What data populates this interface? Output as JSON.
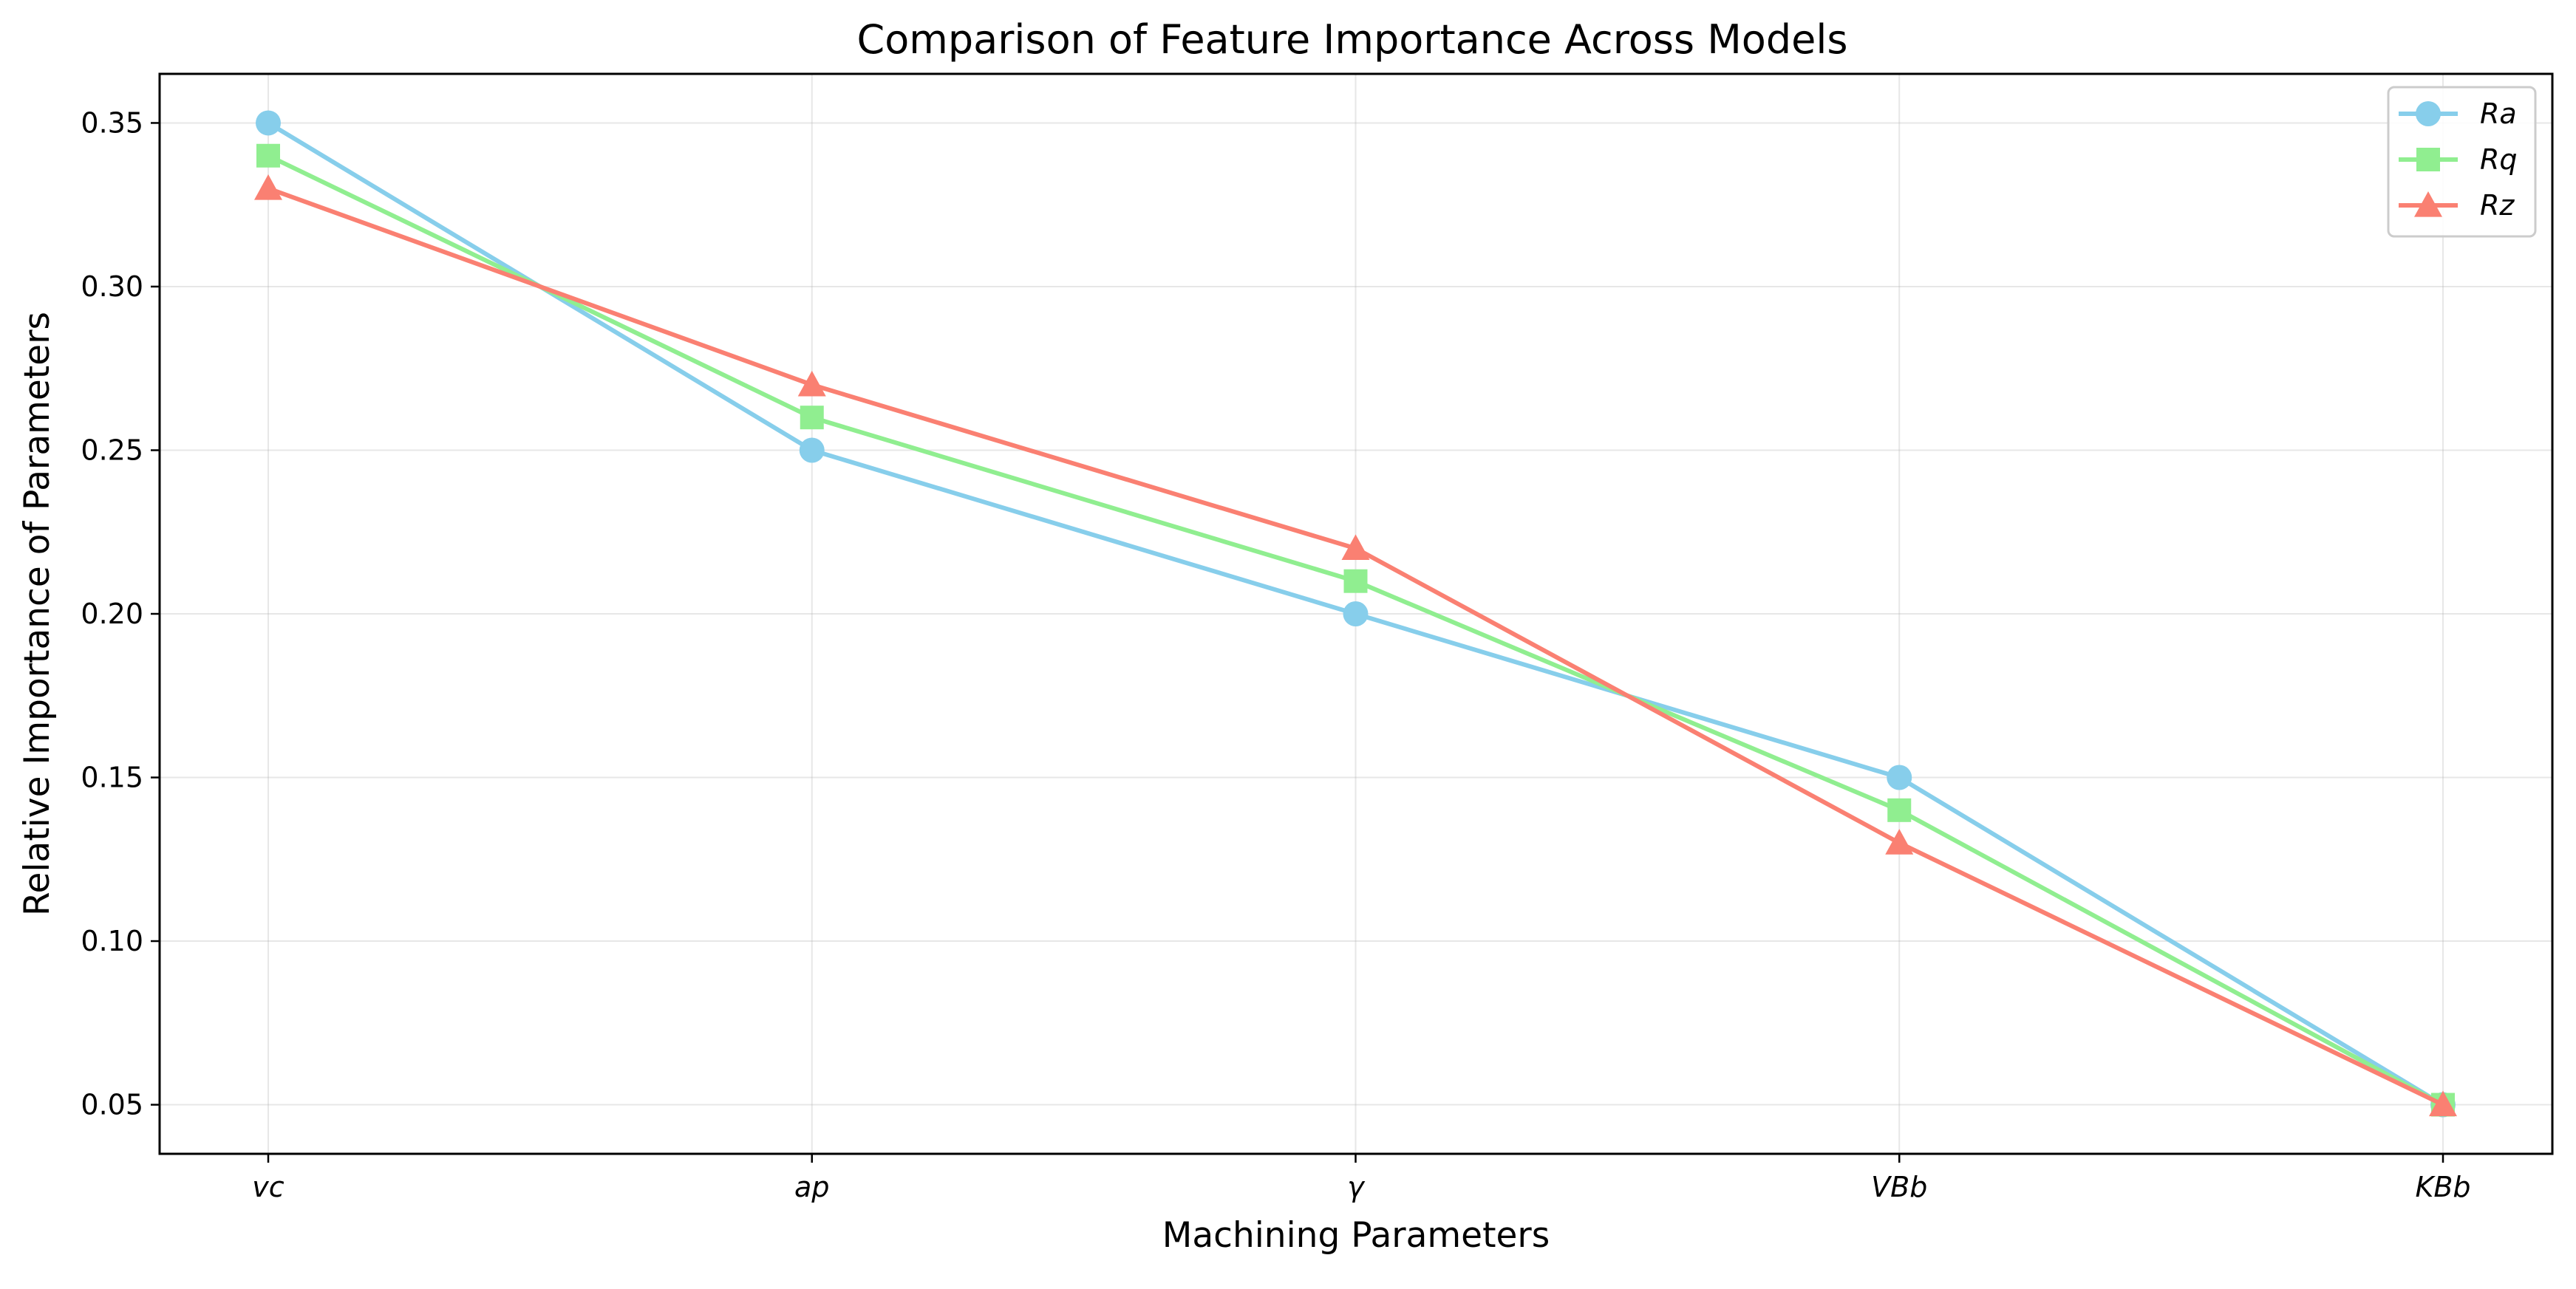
{
  "chart_data": {
    "type": "line",
    "title": "Comparison of Feature Importance Across Models",
    "xlabel": "Machining Parameters",
    "ylabel": "Relative Importance of Parameters",
    "categories": [
      "vc",
      "ap",
      "γ",
      "VBb",
      "KBb"
    ],
    "yticks": [
      "0.05",
      "0.10",
      "0.15",
      "0.20",
      "0.25",
      "0.30",
      "0.35"
    ],
    "ylim": [
      0.035,
      0.365
    ],
    "grid": true,
    "legend_position": "top-right",
    "series": [
      {
        "name": "Ra",
        "color": "#87ceeb",
        "marker": "circle",
        "values": [
          0.35,
          0.25,
          0.2,
          0.15,
          0.05
        ]
      },
      {
        "name": "Rq",
        "color": "#90ee90",
        "marker": "square",
        "values": [
          0.34,
          0.26,
          0.21,
          0.14,
          0.05
        ]
      },
      {
        "name": "Rz",
        "color": "#fa8072",
        "marker": "triangle",
        "values": [
          0.33,
          0.27,
          0.22,
          0.13,
          0.05
        ]
      }
    ]
  }
}
